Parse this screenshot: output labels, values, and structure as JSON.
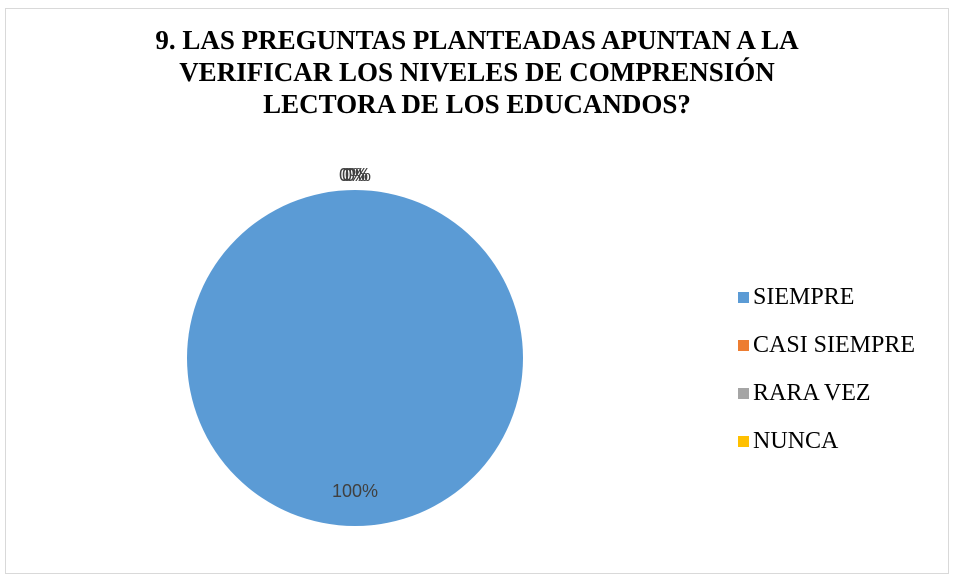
{
  "chart_data": {
    "type": "pie",
    "title_lines": [
      "9. LAS PREGUNTAS PLANTEADAS APUNTAN A LA",
      "VERIFICAR LOS NIVELES DE COMPRENSIÓN",
      "LECTORA DE LOS EDUCANDOS?"
    ],
    "categories": [
      "SIEMPRE",
      "CASI SIEMPRE",
      "RARA VEZ",
      "NUNCA"
    ],
    "values": [
      100,
      0,
      0,
      0
    ],
    "data_labels": [
      "100%",
      "0%",
      "0%",
      "0%"
    ],
    "colors": [
      "#5B9BD5",
      "#ED7D31",
      "#A5A5A5",
      "#FFC000"
    ],
    "legend_position": "right"
  }
}
